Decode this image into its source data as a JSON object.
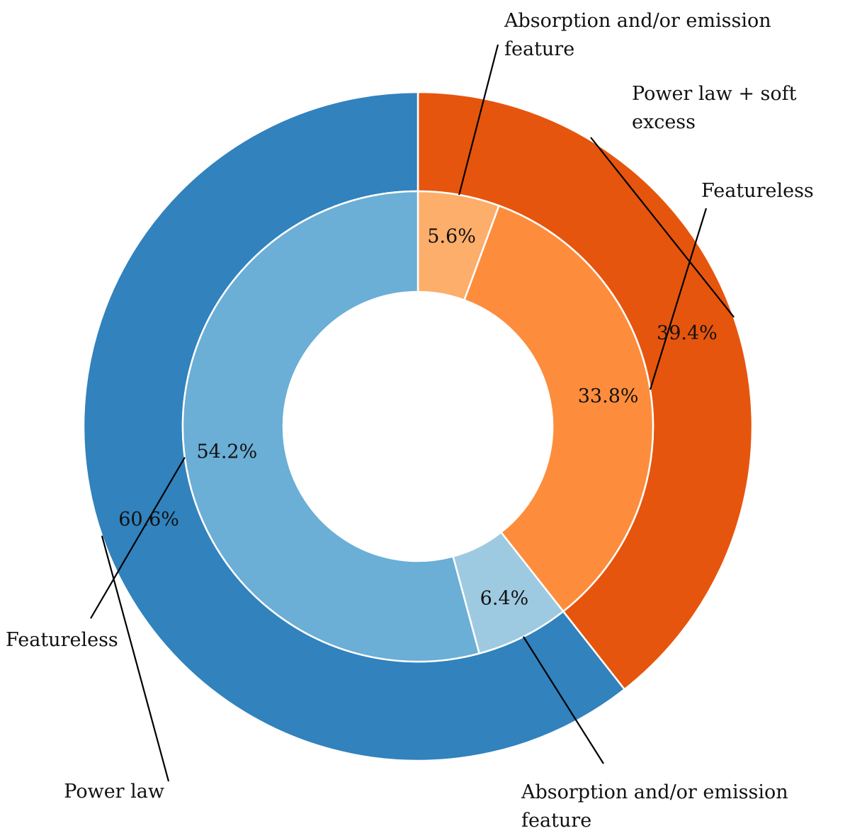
{
  "chart_data": {
    "type": "pie",
    "rings": [
      {
        "ring": "outer",
        "slices": [
          {
            "label_lines": [
              "Power law + soft",
              "excess"
            ],
            "value": 39.4,
            "pct_label": "39.4%",
            "color": "#e6550d"
          },
          {
            "label_lines": [
              "Power law"
            ],
            "value": 60.6,
            "pct_label": "60.6%",
            "color": "#3182bd"
          }
        ]
      },
      {
        "ring": "inner",
        "slices": [
          {
            "label_lines": [
              "Absorption and/or emission",
              "feature"
            ],
            "value": 5.6,
            "pct_label": "5.6%",
            "color": "#fdae6b"
          },
          {
            "label_lines": [
              "Featureless"
            ],
            "value": 33.8,
            "pct_label": "33.8%",
            "color": "#fd8d3c"
          },
          {
            "label_lines": [
              "Absorption and/or emission",
              "feature"
            ],
            "value": 6.4,
            "pct_label": "6.4%",
            "color": "#9ecae1"
          },
          {
            "label_lines": [
              "Featureless"
            ],
            "value": 54.2,
            "pct_label": "54.2%",
            "color": "#6baed6"
          }
        ]
      }
    ]
  }
}
